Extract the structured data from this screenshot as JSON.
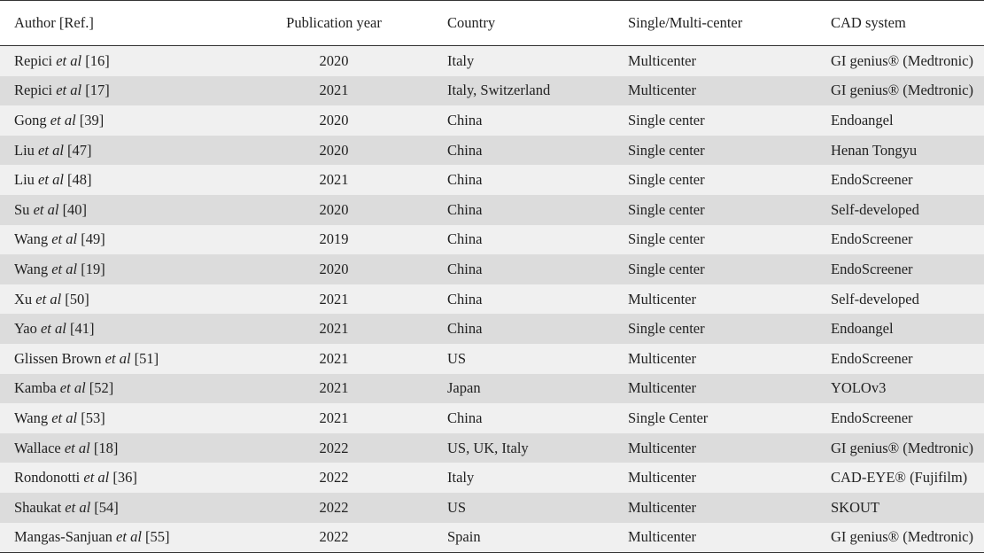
{
  "table": {
    "headers": {
      "author": "Author [Ref.]",
      "year": "Publication year",
      "country": "Country",
      "center": "Single/Multi-center",
      "cad": "CAD system"
    },
    "rows": [
      {
        "name": "Repici",
        "etal": "et al",
        "ref": "[16]",
        "year": "2020",
        "country": "Italy",
        "center": "Multicenter",
        "cad": "GI genius® (Medtronic)"
      },
      {
        "name": "Repici",
        "etal": "et al",
        "ref": "[17]",
        "year": "2021",
        "country": "Italy, Switzerland",
        "center": "Multicenter",
        "cad": "GI genius® (Medtronic)"
      },
      {
        "name": "Gong",
        "etal": "et al",
        "ref": "[39]",
        "year": "2020",
        "country": "China",
        "center": "Single center",
        "cad": "Endoangel"
      },
      {
        "name": "Liu",
        "etal": "et al",
        "ref": "[47]",
        "year": "2020",
        "country": "China",
        "center": "Single center",
        "cad": "Henan Tongyu"
      },
      {
        "name": "Liu",
        "etal": "et al",
        "ref": "[48]",
        "year": "2021",
        "country": "China",
        "center": "Single center",
        "cad": "EndoScreener"
      },
      {
        "name": "Su",
        "etal": "et al",
        "ref": "[40]",
        "year": "2020",
        "country": "China",
        "center": "Single center",
        "cad": "Self-developed"
      },
      {
        "name": "Wang",
        "etal": "et al",
        "ref": "[49]",
        "year": "2019",
        "country": "China",
        "center": "Single center",
        "cad": "EndoScreener"
      },
      {
        "name": "Wang",
        "etal": "et al",
        "ref": "[19]",
        "year": "2020",
        "country": "China",
        "center": "Single center",
        "cad": "EndoScreener"
      },
      {
        "name": "Xu",
        "etal": "et al",
        "ref": "[50]",
        "year": "2021",
        "country": "China",
        "center": "Multicenter",
        "cad": "Self-developed"
      },
      {
        "name": "Yao",
        "etal": "et al",
        "ref": "[41]",
        "year": "2021",
        "country": "China",
        "center": "Single center",
        "cad": "Endoangel"
      },
      {
        "name": "Glissen Brown",
        "etal": "et al",
        "ref": "[51]",
        "year": "2021",
        "country": "US",
        "center": "Multicenter",
        "cad": "EndoScreener"
      },
      {
        "name": "Kamba",
        "etal": "et al",
        "ref": "[52]",
        "year": "2021",
        "country": "Japan",
        "center": "Multicenter",
        "cad": "YOLOv3"
      },
      {
        "name": "Wang",
        "etal": "et al",
        "ref": "[53]",
        "year": "2021",
        "country": "China",
        "center": "Single Center",
        "cad": "EndoScreener"
      },
      {
        "name": "Wallace",
        "etal": "et al",
        "ref": "[18]",
        "year": "2022",
        "country": "US, UK, Italy",
        "center": "Multicenter",
        "cad": "GI genius® (Medtronic)"
      },
      {
        "name": "Rondonotti",
        "etal": "et al",
        "ref": "[36]",
        "year": "2022",
        "country": "Italy",
        "center": "Multicenter",
        "cad": "CAD-EYE® (Fujifilm)"
      },
      {
        "name": "Shaukat",
        "etal": "et al",
        "ref": "[54]",
        "year": "2022",
        "country": "US",
        "center": "Multicenter",
        "cad": "SKOUT"
      },
      {
        "name": "Mangas-Sanjuan",
        "etal": "et al",
        "ref": "[55]",
        "year": "2022",
        "country": "Spain",
        "center": "Multicenter",
        "cad": "GI genius® (Medtronic)"
      }
    ]
  }
}
